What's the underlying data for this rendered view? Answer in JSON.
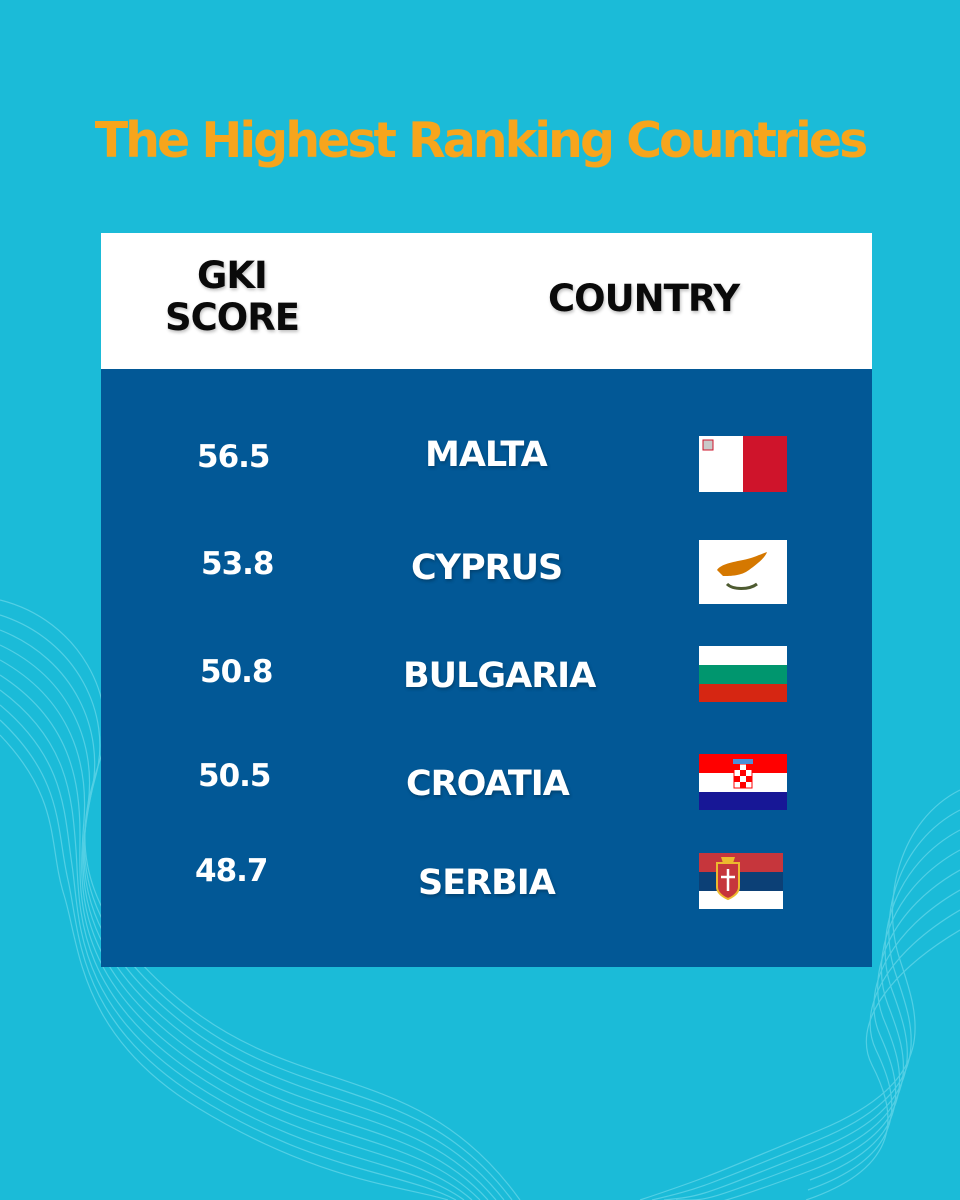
{
  "title": "The Highest Ranking Countries",
  "table": {
    "headers": {
      "score_line1": "GKI",
      "score_line2": "SCORE",
      "country": "COUNTRY"
    },
    "rows": [
      {
        "score": "56.5",
        "country": "MALTA",
        "flag": "malta-flag"
      },
      {
        "score": "53.8",
        "country": "CYPRUS",
        "flag": "cyprus-flag"
      },
      {
        "score": "50.8",
        "country": "BULGARIA",
        "flag": "bulgaria-flag"
      },
      {
        "score": "50.5",
        "country": "CROATIA",
        "flag": "croatia-flag"
      },
      {
        "score": "48.7",
        "country": "SERBIA",
        "flag": "serbia-flag"
      }
    ]
  },
  "colors": {
    "background": "#1bbbd8",
    "title": "#f7a51c",
    "table_body": "#025896",
    "table_header": "#ffffff"
  }
}
